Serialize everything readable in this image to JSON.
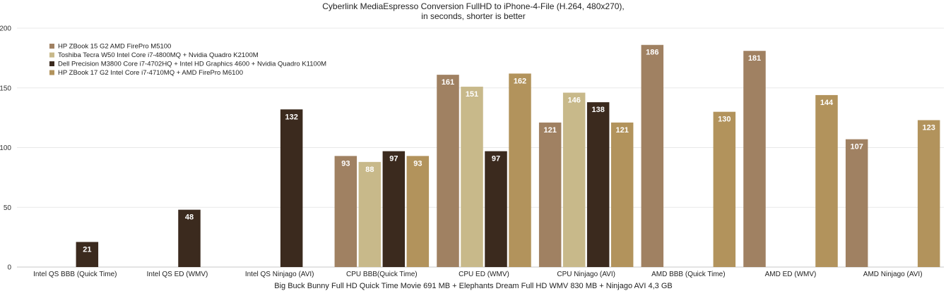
{
  "chart_data": {
    "type": "bar",
    "title_lines": [
      "Cyberlink MediaEspresso Conversion FullHD to iPhone-4-File (H.264, 480x270),",
      "in seconds, shorter is better"
    ],
    "xlabel": "Big Buck Bunny Full HD Quick Time Movie 691 MB + Elephants Dream Full HD WMV 830 MB + Ninjago AVI 4,3 GB",
    "ylabel": "",
    "ylim": [
      0,
      200
    ],
    "yticks": [
      "0",
      "50",
      "100",
      "150",
      "200"
    ],
    "grid": true,
    "legend_position": "top-left",
    "categories": [
      "Intel QS BBB (Quick Time)",
      "Intel QS ED (WMV)",
      "Intel QS Ninjago (AVI)",
      "CPU BBB(Quick Time)",
      "CPU ED (WMV)",
      "CPU Ninjago (AVI)",
      "AMD BBB (Quick Time)",
      "AMD ED (WMV)",
      "AMD Ninjago (AVI)"
    ],
    "series": [
      {
        "name": "HP ZBook 15 G2 AMD FirePro M5100",
        "color": "#a08162",
        "values": [
          null,
          null,
          null,
          93,
          161,
          121,
          186,
          181,
          107
        ]
      },
      {
        "name": "Toshiba Tecra W50 Intel Core i7-4800MQ + Nvidia Quadro K2100M",
        "color": "#c8b98a",
        "values": [
          null,
          null,
          null,
          88,
          151,
          146,
          null,
          null,
          null
        ]
      },
      {
        "name": "Dell Precision M3800 Core i7-4702HQ + Intel HD Graphics 4600 + Nvidia Quadro K1100M",
        "color": "#3b2a1e",
        "values": [
          21,
          48,
          132,
          97,
          97,
          138,
          null,
          null,
          null
        ]
      },
      {
        "name": "HP ZBook 17 G2 Intel Core i7-4710MQ + AMD FirePro M6100",
        "color": "#b2935c",
        "values": [
          null,
          null,
          null,
          93,
          162,
          121,
          130,
          144,
          123
        ]
      }
    ]
  }
}
